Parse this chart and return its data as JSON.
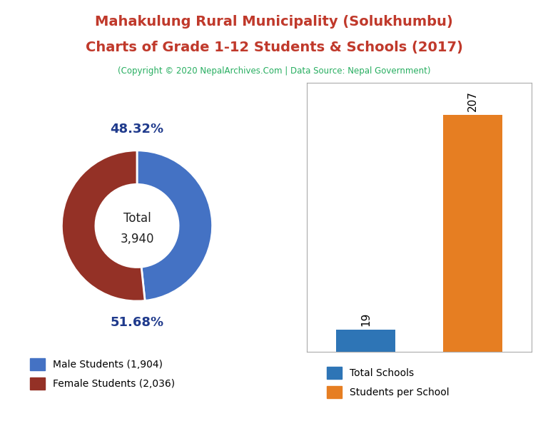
{
  "title_line1": "Mahakulung Rural Municipality (Solukhumbu)",
  "title_line2": "Charts of Grade 1-12 Students & Schools (2017)",
  "subtitle": "(Copyright © 2020 NepalArchives.Com | Data Source: Nepal Government)",
  "title_color": "#c0392b",
  "subtitle_color": "#27ae60",
  "male_students": 1904,
  "female_students": 2036,
  "total_students": 3940,
  "male_pct": 48.32,
  "female_pct": 51.68,
  "male_color": "#4472c4",
  "female_color": "#943126",
  "pct_label_color": "#1f3a8c",
  "total_schools": 19,
  "students_per_school": 207,
  "bar_schools_color": "#2e75b6",
  "bar_students_color": "#e67e22",
  "bar_border_color": "#aaaaaa",
  "background_color": "#ffffff"
}
